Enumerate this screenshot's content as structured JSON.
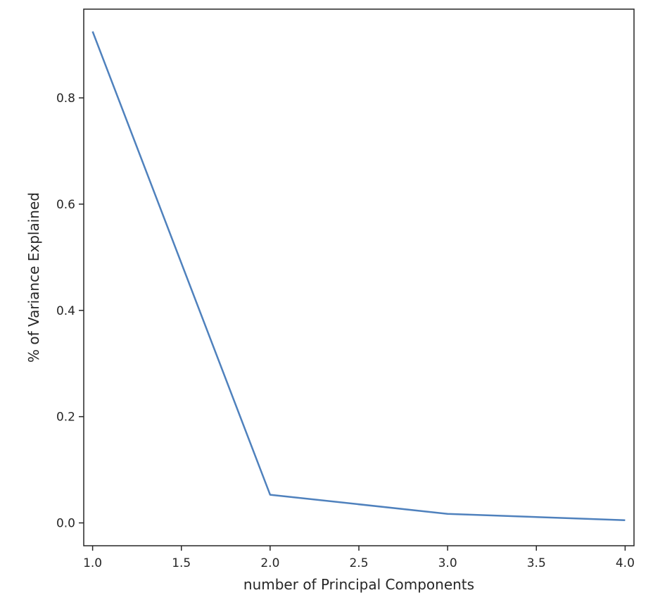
{
  "chart_data": {
    "type": "line",
    "title": "",
    "xlabel": "number of Principal Components",
    "ylabel": "% of Variance Explained",
    "xlim": [
      0.95,
      4.05
    ],
    "ylim": [
      -0.043,
      0.967
    ],
    "xticks": [
      1.0,
      1.5,
      2.0,
      2.5,
      3.0,
      3.5,
      4.0
    ],
    "xtick_labels": [
      "1.0",
      "1.5",
      "2.0",
      "2.5",
      "3.0",
      "3.5",
      "4.0"
    ],
    "yticks": [
      0.0,
      0.2,
      0.4,
      0.6,
      0.8
    ],
    "ytick_labels": [
      "0.0",
      "0.2",
      "0.4",
      "0.6",
      "0.8"
    ],
    "grid": false,
    "series": [
      {
        "color": "#4f81bd",
        "x": [
          1,
          2,
          3,
          4
        ],
        "y": [
          0.925,
          0.053,
          0.017,
          0.005
        ]
      }
    ]
  }
}
